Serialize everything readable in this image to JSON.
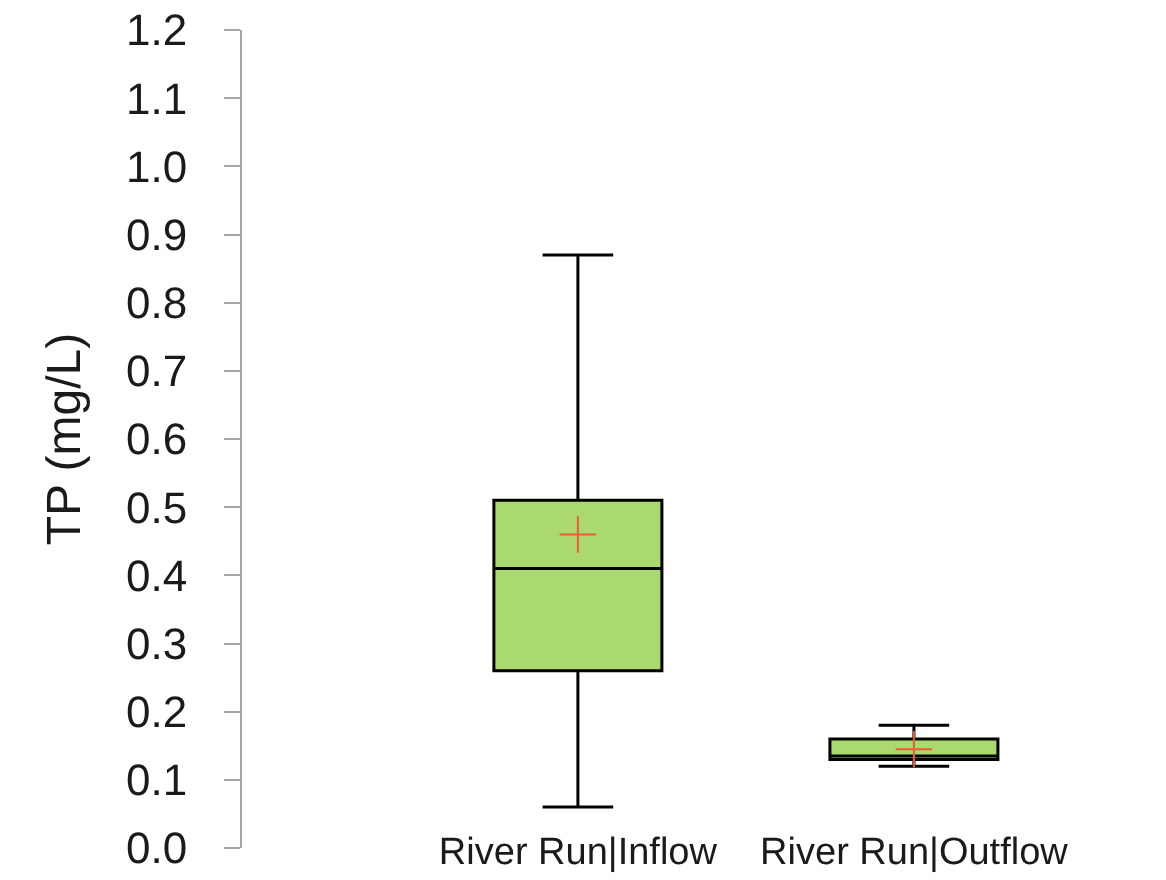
{
  "chart_data": {
    "type": "box",
    "categories": [
      "River Run|Inflow",
      "River Run|Outflow"
    ],
    "ylabel": "TP (mg/L)",
    "ylim": [
      0,
      1.2
    ],
    "yticks": [
      {
        "value": 0,
        "label": "0.0"
      },
      0.1,
      0.2,
      0.3,
      0.4,
      0.5,
      0.6,
      0.7,
      0.8,
      0.9,
      {
        "value": 1,
        "label": "1.0"
      },
      1.1,
      1.2
    ],
    "series": [
      {
        "color": "#a9d96f",
        "boxes": [
          {
            "low": 0.06,
            "q1": 0.26,
            "median": 0.41,
            "q3": 0.51,
            "high": 0.87
          },
          {
            "low": 0.12,
            "q1": 0.13,
            "median": 0.135,
            "q3": 0.16,
            "high": 0.18
          }
        ]
      },
      {
        "type": "scatter",
        "color": "#f05a3a",
        "x": [
          "River Run|Inflow",
          "River Run|Outflow"
        ],
        "values": [
          0.46,
          0.145
        ]
      }
    ],
    "marker": "cross"
  }
}
